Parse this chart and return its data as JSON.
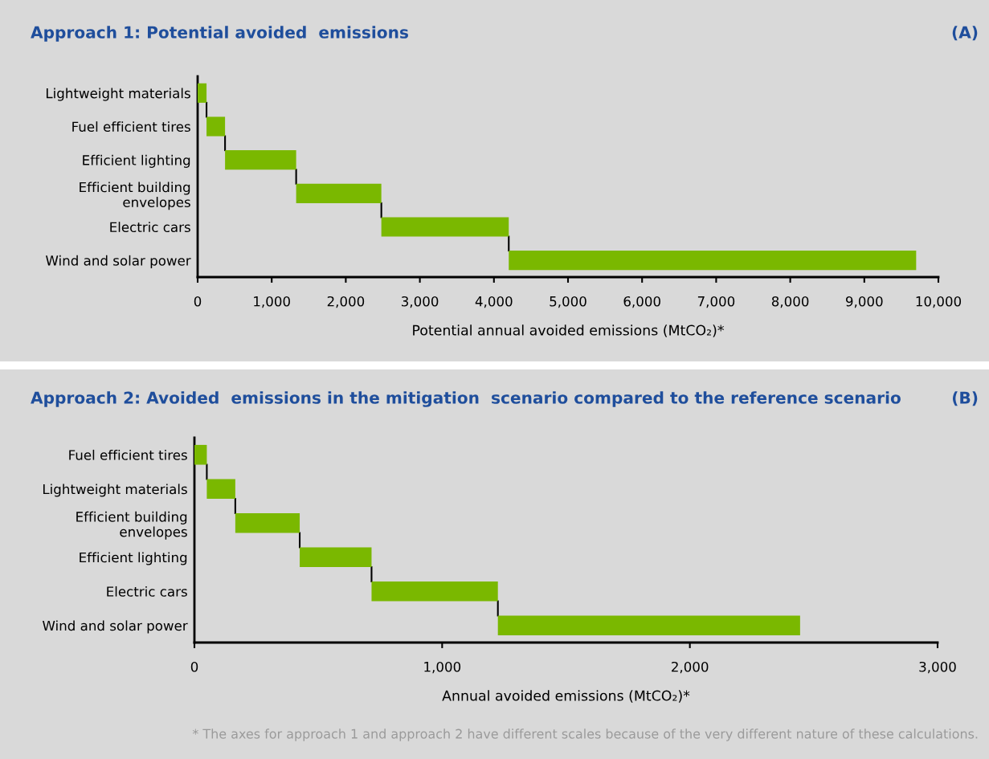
{
  "chart_data": [
    {
      "type": "bar",
      "orientation": "horizontal",
      "title": "Approach 1: Potential avoided  emissions",
      "annotations": [
        "(A)"
      ],
      "categories": [
        "Lightweight materials",
        "Fuel efficient tires",
        "Efficient lighting",
        "Efficient building\nenvelopes",
        "Electric cars",
        "Wind and solar power"
      ],
      "values": [
        120,
        250,
        960,
        1150,
        1720,
        5500
      ],
      "base": [
        0,
        120,
        370,
        1330,
        2480,
        4200
      ],
      "color": "#7ab800",
      "xlabel": "Potential annual avoided emissions (MtCO₂)*",
      "xlim": [
        0,
        10000
      ],
      "xticks": [
        0,
        {
          "value": 1000,
          "label": "1,000"
        },
        {
          "value": 2000,
          "label": "2,000"
        },
        {
          "value": 3000,
          "label": "3,000"
        },
        {
          "value": 4000,
          "label": "4,000"
        },
        {
          "value": 5000,
          "label": "5,000"
        },
        {
          "value": 6000,
          "label": "6,000"
        },
        {
          "value": 7000,
          "label": "7,000"
        },
        {
          "value": 8000,
          "label": "8,000"
        },
        {
          "value": 9000,
          "label": "9,000"
        },
        {
          "value": 10000,
          "label": "10,000"
        }
      ],
      "grid": false,
      "legend": false
    },
    {
      "type": "bar",
      "orientation": "horizontal",
      "title": "Approach 2: Avoided  emissions in the mitigation  scenario compared to the reference scenario",
      "annotations": [
        "(B)",
        "* The axes for approach 1 and approach 2 have different scales because of the very different nature of these calculations."
      ],
      "categories": [
        "Fuel efficient tires",
        "Lightweight materials",
        "Efficient building\nenvelopes",
        "Efficient lighting",
        "Electric cars",
        "Wind and solar power"
      ],
      "values": [
        50,
        115,
        260,
        290,
        510,
        1220
      ],
      "base": [
        0,
        50,
        165,
        425,
        715,
        1225
      ],
      "color": "#7ab800",
      "xlabel": "Annual avoided emissions (MtCO₂)*",
      "xlim": [
        0,
        3000
      ],
      "xticks": [
        0,
        {
          "value": 1000,
          "label": "1,000"
        },
        {
          "value": 2000,
          "label": "2,000"
        },
        {
          "value": 3000,
          "label": "3,000"
        }
      ],
      "grid": false,
      "legend": false
    }
  ]
}
